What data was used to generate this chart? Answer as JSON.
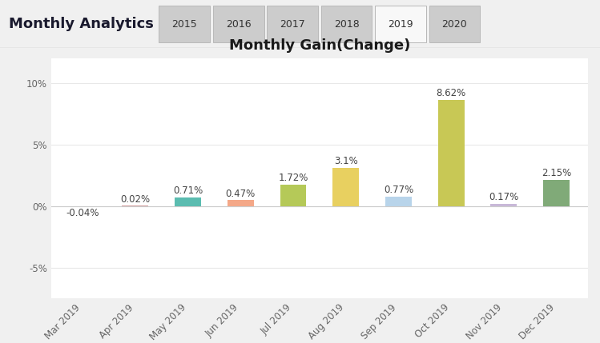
{
  "title": "Monthly Gain(Change)",
  "categories": [
    "Mar 2019",
    "Apr 2019",
    "May 2019",
    "Jun 2019",
    "Jul 2019",
    "Aug 2019",
    "Sep 2019",
    "Oct 2019",
    "Nov 2019",
    "Dec 2019"
  ],
  "values": [
    -0.04,
    0.02,
    0.71,
    0.47,
    1.72,
    3.1,
    0.77,
    8.62,
    0.17,
    2.15
  ],
  "labels": [
    "-0.04%",
    "0.02%",
    "0.71%",
    "0.47%",
    "1.72%",
    "3.1%",
    "0.77%",
    "8.62%",
    "0.17%",
    "2.15%"
  ],
  "bar_colors": [
    "#f08080",
    "#d4a0a0",
    "#5bbcb0",
    "#f4a888",
    "#b5c958",
    "#e8d060",
    "#b8d4ea",
    "#c8c855",
    "#c8b8d8",
    "#80aa78"
  ],
  "ylim": [
    -7.5,
    12
  ],
  "yticks": [
    -5,
    0,
    5,
    10
  ],
  "ytick_labels": [
    "-5%",
    "0%",
    "5%",
    "10%"
  ],
  "background_color": "#f0f0f0",
  "plot_bg_color": "#ffffff",
  "grid_color": "#e8e8e8",
  "header_bg": "#e0e0e0",
  "header_text": "Monthly Analytics",
  "tab_labels": [
    "2015",
    "2016",
    "2017",
    "2018",
    "2019",
    "2020"
  ],
  "active_tab": "2019",
  "title_fontsize": 13,
  "label_fontsize": 8.5,
  "tick_fontsize": 8.5,
  "header_fontsize": 13
}
